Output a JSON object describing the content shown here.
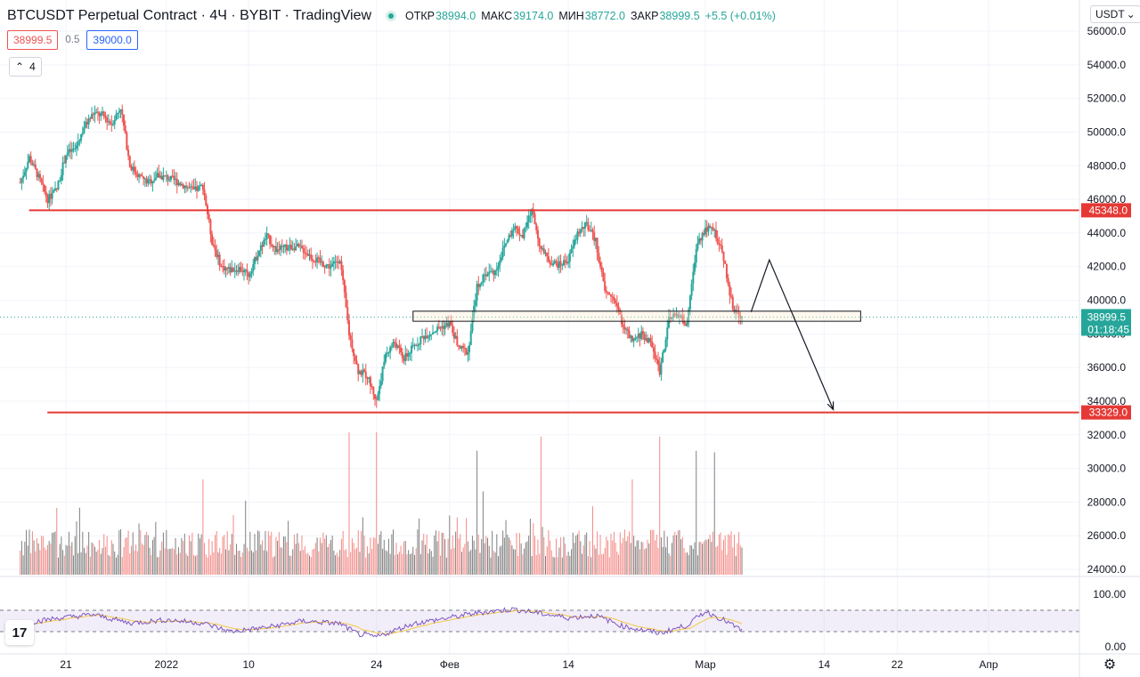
{
  "header": {
    "title": "BTCUSDT Perpetual Contract · 4Ч · BYBIT · TradingView",
    "ohlc": [
      {
        "label": "ОТКР",
        "value": "38994.0"
      },
      {
        "label": "МАКС",
        "value": "39174.0"
      },
      {
        "label": "МИН",
        "value": "38772.0"
      },
      {
        "label": "ЗАКР",
        "value": "38999.5"
      }
    ],
    "change": "+5.5 (+0.01%)"
  },
  "trade": {
    "sell": "38999.5",
    "spread": "0.5",
    "buy": "39000.0"
  },
  "indicators": {
    "count": "4"
  },
  "currency": {
    "label": "USDT"
  },
  "logo": {
    "text": "17"
  },
  "colors": {
    "up": "#26a69a",
    "down": "#ef5350",
    "level": "#e53935",
    "rsi": "#7e57c2",
    "rsi_ma": "#f3c845"
  },
  "chart_data": {
    "type": "candlestick",
    "price_axis": {
      "ticks": [
        "56000.0",
        "54000.0",
        "52000.0",
        "50000.0",
        "48000.0",
        "46000.0",
        "44000.0",
        "42000.0",
        "40000.0",
        "38000.0",
        "36000.0",
        "34000.0",
        "32000.0",
        "30000.0",
        "28000.0",
        "26000.0",
        "24000.0"
      ],
      "ylim": [
        23400,
        57000
      ]
    },
    "time_axis": {
      "ticks": [
        {
          "label": "21",
          "date": "2021-12-21"
        },
        {
          "label": "2022",
          "date": "2022-01-01"
        },
        {
          "label": "10",
          "date": "2022-01-10"
        },
        {
          "label": "24",
          "date": "2022-01-24"
        },
        {
          "label": "Фев",
          "date": "2022-02-01"
        },
        {
          "label": "14",
          "date": "2022-02-14"
        },
        {
          "label": "Мар",
          "date": "2022-03-01"
        },
        {
          "label": "14",
          "date": "2022-03-14"
        },
        {
          "label": "22",
          "date": "2022-03-22"
        },
        {
          "label": "Апр",
          "date": "2022-04-01"
        }
      ],
      "xlim": [
        "2021-12-16",
        "2022-04-08"
      ]
    },
    "price_path": [
      [
        "2021-12-16",
        47000
      ],
      [
        "2021-12-17",
        48500
      ],
      [
        "2021-12-18",
        47300
      ],
      [
        "2021-12-19",
        46000
      ],
      [
        "2021-12-20",
        46600
      ],
      [
        "2021-12-21",
        48700
      ],
      [
        "2021-12-22",
        49000
      ],
      [
        "2021-12-23",
        50300
      ],
      [
        "2021-12-24",
        51100
      ],
      [
        "2021-12-25",
        51000
      ],
      [
        "2021-12-26",
        50500
      ],
      [
        "2021-12-27",
        51500
      ],
      [
        "2021-12-28",
        48000
      ],
      [
        "2021-12-29",
        47400
      ],
      [
        "2021-12-30",
        47000
      ],
      [
        "2021-12-31",
        47400
      ],
      [
        "2022-01-01",
        47300
      ],
      [
        "2022-01-02",
        47100
      ],
      [
        "2022-01-03",
        46800
      ],
      [
        "2022-01-04",
        46500
      ],
      [
        "2022-01-05",
        46800
      ],
      [
        "2022-01-06",
        43500
      ],
      [
        "2022-01-07",
        42000
      ],
      [
        "2022-01-08",
        41800
      ],
      [
        "2022-01-09",
        41900
      ],
      [
        "2022-01-10",
        41500
      ],
      [
        "2022-01-11",
        42800
      ],
      [
        "2022-01-12",
        43800
      ],
      [
        "2022-01-13",
        43000
      ],
      [
        "2022-01-14",
        43100
      ],
      [
        "2022-01-15",
        43200
      ],
      [
        "2022-01-16",
        43000
      ],
      [
        "2022-01-17",
        42500
      ],
      [
        "2022-01-18",
        42200
      ],
      [
        "2022-01-19",
        42000
      ],
      [
        "2022-01-20",
        42500
      ],
      [
        "2022-01-21",
        38000
      ],
      [
        "2022-01-22",
        35800
      ],
      [
        "2022-01-23",
        35500
      ],
      [
        "2022-01-24",
        34000
      ],
      [
        "2022-01-25",
        36800
      ],
      [
        "2022-01-26",
        37500
      ],
      [
        "2022-01-27",
        36500
      ],
      [
        "2022-01-28",
        37200
      ],
      [
        "2022-01-29",
        37800
      ],
      [
        "2022-01-30",
        38100
      ],
      [
        "2022-01-31",
        38400
      ],
      [
        "2022-02-01",
        38600
      ],
      [
        "2022-02-02",
        37200
      ],
      [
        "2022-02-03",
        36900
      ],
      [
        "2022-02-04",
        40800
      ],
      [
        "2022-02-05",
        41600
      ],
      [
        "2022-02-06",
        41700
      ],
      [
        "2022-02-07",
        43200
      ],
      [
        "2022-02-08",
        44400
      ],
      [
        "2022-02-09",
        43800
      ],
      [
        "2022-02-10",
        45400
      ],
      [
        "2022-02-11",
        43000
      ],
      [
        "2022-02-12",
        42300
      ],
      [
        "2022-02-13",
        42100
      ],
      [
        "2022-02-14",
        42400
      ],
      [
        "2022-02-15",
        44000
      ],
      [
        "2022-02-16",
        44500
      ],
      [
        "2022-02-17",
        43500
      ],
      [
        "2022-02-18",
        40500
      ],
      [
        "2022-02-19",
        40100
      ],
      [
        "2022-02-20",
        38500
      ],
      [
        "2022-02-21",
        37500
      ],
      [
        "2022-02-22",
        38000
      ],
      [
        "2022-02-23",
        37500
      ],
      [
        "2022-02-24",
        35800
      ],
      [
        "2022-02-25",
        38800
      ],
      [
        "2022-02-26",
        39200
      ],
      [
        "2022-02-27",
        38500
      ],
      [
        "2022-02-28",
        43200
      ],
      [
        "2022-03-01",
        44300
      ],
      [
        "2022-03-02",
        44100
      ],
      [
        "2022-03-03",
        42500
      ],
      [
        "2022-03-04",
        39500
      ],
      [
        "2022-03-05",
        38999.5
      ]
    ],
    "levels": [
      {
        "price": 45348.0,
        "label": "45348.0",
        "from": "2021-12-16"
      },
      {
        "price": 33329.0,
        "label": "33329.0",
        "from": "2021-12-18"
      }
    ],
    "current_price": {
      "price": 38999.5,
      "label": "38999.5",
      "countdown": "01:18:45"
    },
    "zone": {
      "from": "2022-01-28",
      "to": "2022-03-18",
      "high": 39350,
      "low": 38750
    },
    "projection": [
      [
        "2022-03-06",
        39300
      ],
      [
        "2022-03-08",
        42400
      ],
      [
        "2022-03-15",
        33500
      ]
    ],
    "volume": {
      "scale": "relative",
      "spikes": [
        [
          "2021-12-20",
          0.47
        ],
        [
          "2021-12-29",
          0.36
        ],
        [
          "2022-01-05",
          0.67
        ],
        [
          "2022-01-21",
          1.0
        ],
        [
          "2022-01-24",
          1.0
        ],
        [
          "2022-02-04",
          0.87
        ],
        [
          "2022-02-11",
          0.97
        ],
        [
          "2022-02-21",
          0.67
        ],
        [
          "2022-02-24",
          0.97
        ],
        [
          "2022-02-28",
          0.87
        ],
        [
          "2022-03-02",
          0.86
        ]
      ]
    },
    "rsi": {
      "ticks": [
        "100.00",
        "0.00"
      ],
      "ylim": [
        0,
        100
      ],
      "bands": [
        70,
        30
      ],
      "values": [
        [
          "2021-12-16",
          45
        ],
        [
          "2021-12-20",
          55
        ],
        [
          "2021-12-24",
          62
        ],
        [
          "2021-12-28",
          46
        ],
        [
          "2022-01-01",
          52
        ],
        [
          "2022-01-05",
          46
        ],
        [
          "2022-01-08",
          30
        ],
        [
          "2022-01-12",
          38
        ],
        [
          "2022-01-16",
          50
        ],
        [
          "2022-01-20",
          45
        ],
        [
          "2022-01-22",
          25
        ],
        [
          "2022-01-24",
          20
        ],
        [
          "2022-01-28",
          45
        ],
        [
          "2022-02-01",
          56
        ],
        [
          "2022-02-04",
          65
        ],
        [
          "2022-02-08",
          72
        ],
        [
          "2022-02-11",
          64
        ],
        [
          "2022-02-14",
          56
        ],
        [
          "2022-02-17",
          60
        ],
        [
          "2022-02-20",
          40
        ],
        [
          "2022-02-24",
          27
        ],
        [
          "2022-02-27",
          42
        ],
        [
          "2022-03-01",
          68
        ],
        [
          "2022-03-03",
          52
        ],
        [
          "2022-03-05",
          32
        ]
      ]
    }
  }
}
